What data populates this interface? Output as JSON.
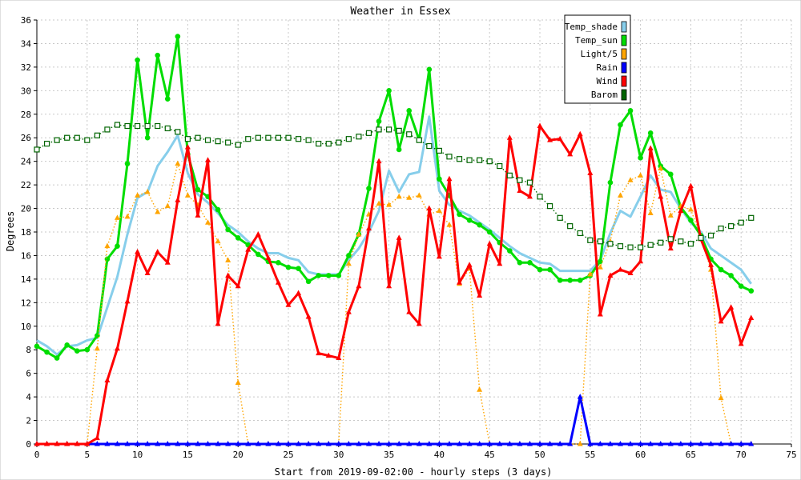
{
  "chart_data": {
    "type": "line",
    "title": "Weather in Essex",
    "xlabel": "Start from 2019-09-02:00 - hourly steps (3 days)",
    "ylabel": "Degrees",
    "xlim": [
      0,
      75
    ],
    "ylim": [
      0,
      36
    ],
    "x_ticks": [
      0,
      5,
      10,
      15,
      20,
      25,
      30,
      35,
      40,
      45,
      50,
      55,
      60,
      65,
      70,
      75
    ],
    "y_ticks": [
      0,
      2,
      4,
      6,
      8,
      10,
      12,
      14,
      16,
      18,
      20,
      22,
      24,
      26,
      28,
      30,
      32,
      34,
      36
    ],
    "grid": true,
    "legend_position": "top-right",
    "x": [
      0,
      1,
      2,
      3,
      4,
      5,
      6,
      7,
      8,
      9,
      10,
      11,
      12,
      13,
      14,
      15,
      16,
      17,
      18,
      19,
      20,
      21,
      22,
      23,
      24,
      25,
      26,
      27,
      28,
      29,
      30,
      31,
      32,
      33,
      34,
      35,
      36,
      37,
      38,
      39,
      40,
      41,
      42,
      43,
      44,
      45,
      46,
      47,
      48,
      49,
      50,
      51,
      52,
      53,
      54,
      55,
      56,
      57,
      58,
      59,
      60,
      61,
      62,
      63,
      64,
      65,
      66,
      67,
      68,
      69,
      70,
      71
    ],
    "series": [
      {
        "name": "Temp_shade",
        "color": "#87ceeb",
        "style": "solid",
        "marker": "none",
        "values": [
          8.8,
          8.3,
          7.6,
          8.3,
          8.4,
          8.8,
          9.0,
          11.6,
          14.2,
          17.8,
          20.9,
          21.4,
          23.6,
          24.8,
          26.2,
          23.0,
          21.2,
          20.5,
          19.6,
          18.6,
          18.0,
          17.2,
          16.6,
          16.2,
          16.2,
          15.8,
          15.6,
          14.6,
          14.4,
          14.4,
          14.4,
          15.6,
          16.6,
          18.0,
          19.8,
          23.2,
          21.4,
          22.9,
          23.1,
          27.8,
          21.5,
          20.3,
          19.8,
          19.4,
          18.8,
          18.2,
          17.5,
          16.8,
          16.2,
          15.8,
          15.4,
          15.3,
          14.7,
          14.7,
          14.7,
          14.7,
          15.6,
          17.9,
          19.8,
          19.3,
          21.0,
          22.8,
          21.6,
          21.4,
          20.0,
          18.8,
          18.0,
          16.6,
          16.0,
          15.4,
          14.8,
          13.6
        ]
      },
      {
        "name": "Temp_sun",
        "color": "#00dd00",
        "style": "solid",
        "marker": "circle",
        "values": [
          8.3,
          7.8,
          7.3,
          8.4,
          7.9,
          8.0,
          9.2,
          15.7,
          16.8,
          23.8,
          32.6,
          26.0,
          33.0,
          29.3,
          34.6,
          24.6,
          21.6,
          21.0,
          19.9,
          18.2,
          17.5,
          16.9,
          16.1,
          15.5,
          15.4,
          15.0,
          14.9,
          13.8,
          14.3,
          14.3,
          14.3,
          16.0,
          17.8,
          21.7,
          27.4,
          30.0,
          25.0,
          28.3,
          25.8,
          31.8,
          22.5,
          21.1,
          19.5,
          19.0,
          18.6,
          18.0,
          17.1,
          16.4,
          15.4,
          15.4,
          14.8,
          14.8,
          13.9,
          13.9,
          13.9,
          14.3,
          15.5,
          22.2,
          27.1,
          28.3,
          24.3,
          26.4,
          23.6,
          22.9,
          20.1,
          19.0,
          17.7,
          15.7,
          14.8,
          14.3,
          13.4,
          13.0
        ]
      },
      {
        "name": "Light/5",
        "color": "#ffa500",
        "style": "dotted",
        "marker": "triangle",
        "values": [
          0,
          0,
          0,
          0,
          0,
          0,
          8.1,
          16.8,
          19.2,
          19.3,
          21.1,
          21.4,
          19.7,
          20.2,
          23.8,
          21.1,
          20.3,
          18.8,
          17.2,
          15.6,
          5.2,
          0,
          0,
          0,
          0,
          0,
          0,
          0,
          0,
          0,
          0,
          15.3,
          17.8,
          19.5,
          20.4,
          20.3,
          21.0,
          20.9,
          21.1,
          19.5,
          19.8,
          18.6,
          13.6,
          14.9,
          4.6,
          0,
          0,
          0,
          0,
          0,
          0,
          0,
          0,
          0,
          0,
          14.4,
          15.0,
          17.2,
          21.1,
          22.4,
          22.8,
          19.6,
          23.4,
          19.4,
          20.2,
          19.9,
          17.6,
          14.8,
          3.9,
          0,
          0,
          0
        ]
      },
      {
        "name": "Rain",
        "color": "#0000ff",
        "style": "solid",
        "marker": "triangle",
        "values": [
          0,
          0,
          0,
          0,
          0,
          0,
          0,
          0,
          0,
          0,
          0,
          0,
          0,
          0,
          0,
          0,
          0,
          0,
          0,
          0,
          0,
          0,
          0,
          0,
          0,
          0,
          0,
          0,
          0,
          0,
          0,
          0,
          0,
          0,
          0,
          0,
          0,
          0,
          0,
          0,
          0,
          0,
          0,
          0,
          0,
          0,
          0,
          0,
          0,
          0,
          0,
          0,
          0,
          0,
          4.0,
          0,
          0,
          0,
          0,
          0,
          0,
          0,
          0,
          0,
          0,
          0,
          0,
          0,
          0,
          0,
          0,
          0
        ]
      },
      {
        "name": "Wind",
        "color": "#ff0000",
        "style": "solid",
        "marker": "triangle",
        "values": [
          0,
          0,
          0,
          0,
          0,
          0,
          0.5,
          5.4,
          8.1,
          12.1,
          16.3,
          14.5,
          16.3,
          15.4,
          20.7,
          25.2,
          19.4,
          24.1,
          10.2,
          14.3,
          13.4,
          16.5,
          17.8,
          15.8,
          13.7,
          11.8,
          12.8,
          10.8,
          7.7,
          7.5,
          7.3,
          11.2,
          13.4,
          18.3,
          24.0,
          13.4,
          17.5,
          11.2,
          10.2,
          20.0,
          15.9,
          22.5,
          13.7,
          15.2,
          12.6,
          17.0,
          15.3,
          26.0,
          21.5,
          21.0,
          27.0,
          25.8,
          25.9,
          24.6,
          26.3,
          23.0,
          11.0,
          14.3,
          14.8,
          14.5,
          15.5,
          25.1,
          21.0,
          16.6,
          19.8,
          21.9,
          17.4,
          15.2,
          10.4,
          11.6,
          8.5,
          10.7
        ]
      },
      {
        "name": "Barom",
        "color": "#006400",
        "style": "dotted",
        "marker": "square",
        "values": [
          25.0,
          25.5,
          25.8,
          26.0,
          26.0,
          25.8,
          26.2,
          26.7,
          27.1,
          27.0,
          27.0,
          27.0,
          27.0,
          26.8,
          26.5,
          25.9,
          26.0,
          25.8,
          25.7,
          25.6,
          25.4,
          25.9,
          26.0,
          26.0,
          26.0,
          26.0,
          25.9,
          25.8,
          25.5,
          25.5,
          25.6,
          25.9,
          26.1,
          26.4,
          26.7,
          26.7,
          26.6,
          26.3,
          25.8,
          25.3,
          24.9,
          24.4,
          24.2,
          24.1,
          24.1,
          24.0,
          23.6,
          22.8,
          22.4,
          22.2,
          21.0,
          20.2,
          19.2,
          18.5,
          17.9,
          17.3,
          17.2,
          17.0,
          16.8,
          16.7,
          16.7,
          16.9,
          17.1,
          17.4,
          17.2,
          17.0,
          17.5,
          17.7,
          18.3,
          18.5,
          18.8,
          19.2
        ]
      }
    ]
  }
}
